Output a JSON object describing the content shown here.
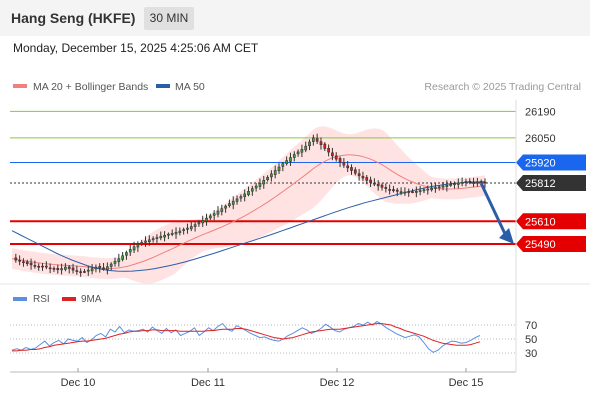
{
  "header": {
    "title": "Hang Seng (HKFE)",
    "timeframe": "30 MIN"
  },
  "datetime": "Monday, December 15, 2025 4:25:06 AM CET",
  "legend": {
    "ma20": "MA 20 + Bollinger Bands",
    "ma50": "MA 50",
    "credit": "Research © 2025 Trading Central",
    "rsi": "RSI",
    "rsi_ma": "9MA"
  },
  "colors": {
    "ma20": "#f08080",
    "ma50": "#2a5ea8",
    "band": "#ffd9d9",
    "resistance_green": "#8cc63f",
    "pivot_blue": "#1a66ee",
    "support_red": "#e40000",
    "last_price": "#333333",
    "candle": "#333333",
    "candle_up": "#3ca33c",
    "candle_down": "#d81e1e",
    "arrow": "#2a5ea8",
    "rsi": "#5b8fe0",
    "rsi_ma": "#dd2222"
  },
  "chart_data": [
    {
      "type": "candlestick",
      "x_labels": [
        "Dec 10",
        "Dec 11",
        "Dec 12",
        "Dec 15"
      ],
      "ylim": [
        25300,
        26250
      ],
      "levels": [
        {
          "label": "26190",
          "value": 26190,
          "kind": "resistance",
          "color": "#8cc63f"
        },
        {
          "label": "26050",
          "value": 26050,
          "kind": "resistance",
          "color": "#8cc63f"
        },
        {
          "label": "25920",
          "value": 25920,
          "kind": "pivot",
          "color": "#1a66ee"
        },
        {
          "label": "25812",
          "value": 25812,
          "kind": "last",
          "color": "#333333"
        },
        {
          "label": "25610",
          "value": 25610,
          "kind": "support",
          "color": "#e40000"
        },
        {
          "label": "25490",
          "value": 25490,
          "kind": "support",
          "color": "#e40000"
        }
      ],
      "close_values": [
        25413,
        25405,
        25400,
        25393,
        25386,
        25380,
        25375,
        25370,
        25372,
        25368,
        25362,
        25358,
        25354,
        25360,
        25368,
        25360,
        25352,
        25347,
        25342,
        25345,
        25352,
        25360,
        25368,
        25364,
        25358,
        25370,
        25384,
        25398,
        25412,
        25428,
        25445,
        25462,
        25476,
        25488,
        25498,
        25506,
        25512,
        25518,
        25524,
        25530,
        25536,
        25542,
        25546,
        25552,
        25558,
        25566,
        25574,
        25582,
        25592,
        25602,
        25614,
        25626,
        25638,
        25650,
        25664,
        25676,
        25690,
        25703,
        25716,
        25728,
        25740,
        25754,
        25768,
        25782,
        25796,
        25810,
        25826,
        25842,
        25860,
        25878,
        25896,
        25914,
        25930,
        25946,
        25962,
        25976,
        25990,
        26006,
        26028,
        26050,
        26032,
        26014,
        25994,
        25975,
        25955,
        25938,
        25922,
        25906,
        25892,
        25878,
        25864,
        25850,
        25838,
        25826,
        25815,
        25806,
        25797,
        25789,
        25782,
        25776,
        25771,
        25768,
        25766,
        25764,
        25764,
        25766,
        25768,
        25772,
        25776,
        25780,
        25784,
        25788,
        25792,
        25796,
        25800,
        25804,
        25808,
        25812,
        25816,
        25820,
        25818,
        25814,
        25816,
        25818,
        25812
      ],
      "ma50_values": [
        25560,
        25540,
        25520,
        25500,
        25480,
        25460,
        25440,
        25422,
        25405,
        25390,
        25376,
        25364,
        25356,
        25350,
        25347,
        25346,
        25347,
        25350,
        25354,
        25360,
        25368,
        25376,
        25385,
        25395,
        25406,
        25418,
        25430,
        25442,
        25455,
        25468,
        25481,
        25494,
        25507,
        25520,
        25533,
        25546,
        25560,
        25574,
        25588,
        25602,
        25616,
        25630,
        25644,
        25658,
        25671,
        25684,
        25696,
        25708,
        25718,
        25728,
        25738,
        25748,
        25758,
        25768,
        25777,
        25786,
        25794,
        25800,
        25806,
        25810,
        25814,
        25817,
        25818,
        25819
      ],
      "ma50_label": "MA 50",
      "ma20_label": "MA 20 + Bollinger Bands"
    },
    {
      "type": "line",
      "panel": "RSI",
      "y_ticks": [
        70,
        50,
        30
      ],
      "ylim": [
        10,
        90
      ],
      "x_labels": [
        "Dec 10",
        "Dec 11",
        "Dec 12",
        "Dec 15"
      ],
      "series": [
        {
          "name": "RSI",
          "color": "#5b8fe0",
          "values": [
            34,
            36,
            34,
            38,
            35,
            37,
            42,
            47,
            40,
            45,
            48,
            43,
            50,
            48,
            47,
            52,
            45,
            49,
            55,
            58,
            53,
            64,
            60,
            68,
            59,
            63,
            61,
            62,
            64,
            60,
            67,
            62,
            58,
            65,
            59,
            63,
            55,
            58,
            61,
            66,
            55,
            60,
            66,
            62,
            68,
            72,
            64,
            61,
            69,
            66,
            62,
            58,
            55,
            52,
            53,
            50,
            48,
            47,
            50,
            55,
            58,
            62,
            66,
            63,
            58,
            61,
            65,
            71,
            67,
            62,
            60,
            64,
            66,
            68,
            72,
            70,
            74,
            70,
            75,
            71,
            66,
            62,
            58,
            55,
            52,
            54,
            56,
            53,
            45,
            36,
            31,
            34,
            40,
            44,
            47,
            46,
            44,
            45,
            48,
            52,
            55
          ]
        },
        {
          "name": "9MA",
          "color": "#dd2222",
          "values": [
            33,
            33,
            34,
            34,
            35,
            35,
            36,
            38,
            39,
            41,
            42,
            43,
            44,
            45,
            46,
            47,
            47,
            48,
            49,
            50,
            51,
            53,
            55,
            57,
            58,
            60,
            61,
            61,
            62,
            62,
            63,
            63,
            62,
            62,
            62,
            62,
            61,
            61,
            61,
            61,
            61,
            61,
            62,
            62,
            63,
            64,
            64,
            64,
            65,
            65,
            64,
            62,
            60,
            58,
            56,
            54,
            52,
            51,
            50,
            51,
            52,
            54,
            56,
            58,
            60,
            61,
            62,
            63,
            64,
            64,
            64,
            65,
            66,
            67,
            68,
            69,
            70,
            71,
            72,
            72,
            71,
            70,
            67,
            65,
            62,
            60,
            58,
            56,
            54,
            51,
            48,
            46,
            44,
            43,
            42,
            41,
            41,
            41,
            42,
            44,
            46
          ]
        }
      ]
    }
  ]
}
